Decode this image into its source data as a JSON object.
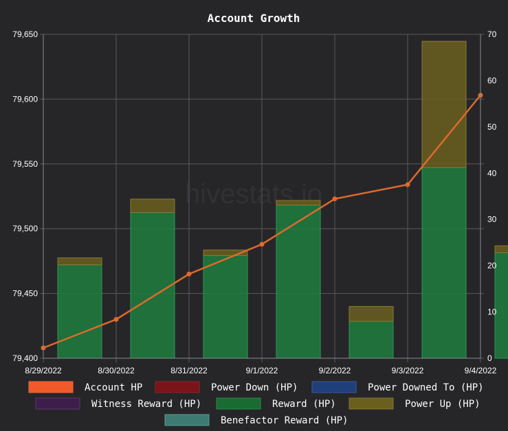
{
  "chart_data": {
    "type": "bar",
    "title": "Account Growth",
    "watermark": "hivestats.io",
    "categories": [
      "8/29/2022",
      "8/30/2022",
      "8/31/2022",
      "9/1/2022",
      "9/2/2022",
      "9/3/2022",
      "9/4/2022"
    ],
    "y_left": {
      "min": 79400,
      "max": 79650,
      "ticks": [
        "79,400",
        "79,450",
        "79,500",
        "79,550",
        "79,600",
        "79,650"
      ]
    },
    "y_right": {
      "min": 0,
      "max": 70,
      "ticks": [
        "0",
        "10",
        "20",
        "30",
        "40",
        "50",
        "60",
        "70"
      ]
    },
    "stack_series": [
      {
        "name": "Reward (HP)",
        "color": "#1e7e3e",
        "values": [
          20.2,
          31.5,
          22.2,
          33.1,
          8.0,
          41.2,
          22.8
        ]
      },
      {
        "name": "Power Up (HP)",
        "color": "#6b5f1e",
        "values": [
          1.5,
          2.9,
          1.2,
          1.0,
          3.2,
          27.3,
          1.5
        ]
      }
    ],
    "line_series": {
      "name": "Account HP",
      "color": "#e06a2c",
      "values": [
        79408,
        79430,
        79465,
        79488,
        79523,
        79534,
        79603
      ]
    },
    "legend": [
      {
        "label": "Account HP",
        "fill": "#f05a28",
        "stroke": "#f06a3a"
      },
      {
        "label": "Power Down (HP)",
        "fill": "#7a1418",
        "stroke": "#8a2428"
      },
      {
        "label": "Power Downed To (HP)",
        "fill": "#1f3f7a",
        "stroke": "#3a5a9a"
      },
      {
        "label": "Witness Reward (HP)",
        "fill": "#3d1e4a",
        "stroke": "#5a3a6a"
      },
      {
        "label": "Reward (HP)",
        "fill": "#1a6b32",
        "stroke": "#2a8a48"
      },
      {
        "label": "Power Up (HP)",
        "fill": "#6b5f1e",
        "stroke": "#857730"
      },
      {
        "label": "Benefactor Reward (HP)",
        "fill": "#3d7a72",
        "stroke": "#5a9a92"
      }
    ],
    "grid": true,
    "legend_position": "bottom"
  }
}
